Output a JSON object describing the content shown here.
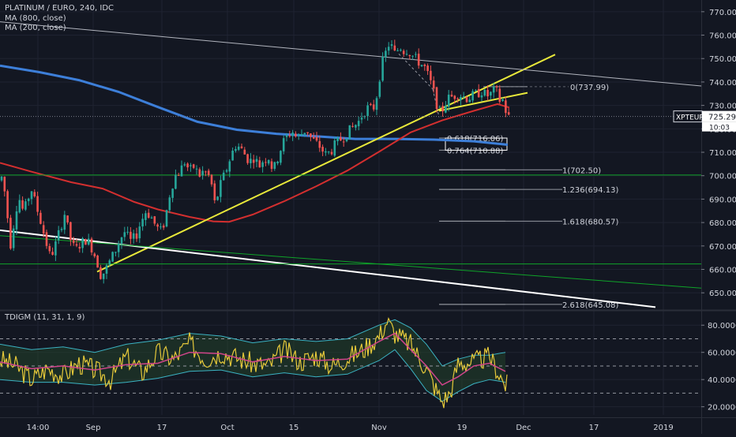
{
  "legend": {
    "symbol_line": "PLATINUM / EURO, 240, IDC",
    "ma_800": "MA (800, close)",
    "ma_200": "MA (200, close)",
    "oscillator": "TDIGM (11, 31, 1, 9)"
  },
  "colors": {
    "background": "#131722",
    "grid": "#1f2331",
    "up_candle": "#26a69a",
    "down_candle": "#ef5350",
    "ma_800": "#3d7fd9",
    "ma_200": "#d32f2f",
    "trendline": "#e8e83a",
    "support_line": "#ffffff",
    "green_level": "#0fa329",
    "fib": "#9598a1",
    "text": "#d1d4dc"
  },
  "chart_data": [
    {
      "type": "candlestick",
      "symbol": "XPTEUR",
      "title": "PLATINUM / EURO, 240, IDC",
      "current_price_label": "725.29",
      "countdown_label": "10:03",
      "ylim": [
        643,
        775
      ],
      "y_ticks": [
        "770.00",
        "760.00",
        "750.00",
        "740.00",
        "730.00",
        "720.00",
        "710.00",
        "700.00",
        "690.00",
        "680.00",
        "670.00",
        "660.00",
        "650.00"
      ],
      "x_ticks": [
        "14:00",
        "Sep",
        "17",
        "Oct",
        "15",
        "Nov",
        "19",
        "Dec",
        "17",
        "2019"
      ],
      "candle_path": [
        [
          0,
          698
        ],
        [
          3,
          700
        ],
        [
          8,
          688
        ],
        [
          13,
          670
        ],
        [
          16,
          676
        ],
        [
          20,
          686
        ],
        [
          25,
          690
        ],
        [
          30,
          684
        ],
        [
          35,
          690
        ],
        [
          40,
          694
        ],
        [
          45,
          688
        ],
        [
          52,
          680
        ],
        [
          58,
          672
        ],
        [
          63,
          666
        ],
        [
          68,
          668
        ],
        [
          75,
          676
        ],
        [
          82,
          684
        ],
        [
          88,
          674
        ],
        [
          95,
          668
        ],
        [
          102,
          671
        ],
        [
          110,
          673
        ],
        [
          118,
          668
        ],
        [
          124,
          662
        ],
        [
          128,
          657
        ],
        [
          134,
          660
        ],
        [
          140,
          664
        ],
        [
          146,
          668
        ],
        [
          152,
          673
        ],
        [
          158,
          676
        ],
        [
          165,
          672
        ],
        [
          172,
          674
        ],
        [
          178,
          680
        ],
        [
          185,
          685
        ],
        [
          192,
          682
        ],
        [
          198,
          678
        ],
        [
          205,
          676
        ],
        [
          211,
          685
        ],
        [
          216,
          694
        ],
        [
          222,
          700
        ],
        [
          228,
          702
        ],
        [
          234,
          706
        ],
        [
          240,
          702
        ],
        [
          246,
          704
        ],
        [
          252,
          700
        ],
        [
          258,
          702
        ],
        [
          264,
          700
        ],
        [
          268,
          696
        ],
        [
          272,
          688
        ],
        [
          276,
          692
        ],
        [
          280,
          697
        ],
        [
          286,
          702
        ],
        [
          292,
          708
        ],
        [
          298,
          713
        ],
        [
          304,
          712
        ],
        [
          310,
          709
        ],
        [
          316,
          706
        ],
        [
          322,
          708
        ],
        [
          328,
          704
        ],
        [
          334,
          707
        ],
        [
          340,
          708
        ],
        [
          346,
          702
        ],
        [
          352,
          708
        ],
        [
          358,
          714
        ],
        [
          364,
          717
        ],
        [
          370,
          719
        ],
        [
          376,
          716
        ],
        [
          382,
          718
        ],
        [
          388,
          720
        ],
        [
          394,
          716
        ],
        [
          400,
          714
        ],
        [
          406,
          712
        ],
        [
          412,
          709
        ],
        [
          418,
          710
        ],
        [
          424,
          713
        ],
        [
          430,
          715
        ],
        [
          436,
          717
        ],
        [
          442,
          719
        ],
        [
          448,
          721
        ],
        [
          454,
          723
        ],
        [
          460,
          727
        ],
        [
          466,
          729
        ],
        [
          472,
          728
        ],
        [
          476,
          732
        ],
        [
          480,
          741
        ],
        [
          484,
          748
        ],
        [
          488,
          752
        ],
        [
          492,
          756
        ],
        [
          496,
          755
        ],
        [
          500,
          752
        ],
        [
          504,
          754
        ],
        [
          508,
          755
        ],
        [
          512,
          753
        ],
        [
          516,
          754
        ],
        [
          520,
          752
        ],
        [
          526,
          750
        ],
        [
          532,
          748
        ],
        [
          538,
          746
        ],
        [
          544,
          741
        ],
        [
          548,
          737
        ],
        [
          552,
          732
        ],
        [
          556,
          727
        ],
        [
          560,
          728
        ],
        [
          564,
          731
        ],
        [
          568,
          733
        ],
        [
          574,
          734
        ],
        [
          580,
          735
        ],
        [
          586,
          734
        ],
        [
          592,
          733
        ],
        [
          598,
          734
        ],
        [
          604,
          735
        ],
        [
          610,
          736
        ],
        [
          616,
          734
        ],
        [
          622,
          735
        ],
        [
          628,
          737
        ],
        [
          632,
          732
        ],
        [
          636,
          733
        ],
        [
          640,
          728
        ],
        [
          644,
          725
        ]
      ],
      "series": [
        {
          "name": "MA (800, close)",
          "x": [
            0,
            50,
            100,
            150,
            200,
            250,
            300,
            350,
            400,
            450,
            500,
            550,
            600,
            643
          ],
          "y": [
            747,
            744.2,
            740.8,
            735.8,
            729.3,
            723,
            719.6,
            717.9,
            716.8,
            715.7,
            715.7,
            715.4,
            714.7,
            713.2
          ]
        },
        {
          "name": "MA (200, close)",
          "x": [
            0,
            40,
            90,
            130,
            170,
            200,
            240,
            270,
            290,
            320,
            360,
            400,
            440,
            480,
            520,
            560,
            600,
            630,
            645
          ],
          "y": [
            705.5,
            701.7,
            697.2,
            694.5,
            688.8,
            685.6,
            682.4,
            680.5,
            680.3,
            683.4,
            689.1,
            695.4,
            702.2,
            710.2,
            718.5,
            723.6,
            727.7,
            730.6,
            729.1
          ]
        }
      ],
      "trendlines": [
        {
          "name": "rising-yellow-main",
          "x": [
            123,
            703
          ],
          "y": [
            659,
            751.7
          ]
        },
        {
          "name": "rising-yellow-upper",
          "x": [
            556,
            668
          ],
          "y": [
            727.7,
            735.4
          ]
        },
        {
          "name": "descending-gray",
          "x": [
            0,
            888
          ],
          "y": [
            765.7,
            738.3
          ]
        },
        {
          "name": "descending-white",
          "x": [
            0,
            830
          ],
          "y": [
            676.7,
            643.9
          ]
        },
        {
          "name": "descending-green",
          "x": [
            0,
            888
          ],
          "y": [
            674.4,
            652
          ]
        },
        {
          "name": "horizontal-green-700",
          "x": [
            0,
            888
          ],
          "y": [
            700.3,
            700.3
          ]
        },
        {
          "name": "horizontal-green-662",
          "x": [
            0,
            888
          ],
          "y": [
            662.3,
            662.3
          ]
        }
      ],
      "fibonacci": [
        {
          "label": "0(737.99)",
          "value": 737.99
        },
        {
          "label": "0.618(716.06)",
          "value": 716.06
        },
        {
          "label": "0.764(710.88)",
          "value": 710.88
        },
        {
          "label": "1(702.50)",
          "value": 702.5
        },
        {
          "label": "1.236(694.13)",
          "value": 694.13
        },
        {
          "label": "1.618(680.57)",
          "value": 680.57
        },
        {
          "label": "2.618(645.08)",
          "value": 645.08
        }
      ],
      "highlight_box": {
        "y_range": [
          710.88,
          716.06
        ]
      }
    },
    {
      "type": "line",
      "title": "TDIGM (11, 31, 1, 9)",
      "ylim": [
        14,
        90
      ],
      "y_ticks": [
        "80.0000",
        "60.0000",
        "40.0000",
        "20.0000"
      ],
      "levels": [
        70,
        50,
        30
      ],
      "series": [
        {
          "name": "price-line",
          "x": [
            0,
            20,
            40,
            60,
            80,
            100,
            120,
            140,
            160,
            180,
            200,
            220,
            240,
            260,
            280,
            300,
            320,
            340,
            360,
            380,
            400,
            420,
            440,
            460,
            480,
            490,
            500,
            520,
            540,
            550,
            560,
            570,
            580,
            600,
            620,
            640
          ],
          "y": [
            55,
            50,
            40,
            48,
            43,
            52,
            47,
            40,
            57,
            45,
            60,
            55,
            67,
            55,
            60,
            56,
            52,
            50,
            62,
            53,
            58,
            50,
            56,
            62,
            72,
            83,
            74,
            66,
            48,
            35,
            24,
            30,
            52,
            53,
            57,
            36
          ]
        },
        {
          "name": "signal-line",
          "x": [
            0,
            40,
            80,
            120,
            160,
            200,
            240,
            280,
            320,
            360,
            400,
            440,
            480,
            500,
            520,
            540,
            560,
            580,
            600,
            620,
            640
          ],
          "y": [
            53,
            48,
            50,
            47,
            51,
            52,
            60,
            59,
            53,
            57,
            54,
            55,
            68,
            74,
            62,
            50,
            36,
            42,
            50,
            52,
            46
          ]
        },
        {
          "name": "band-upper",
          "x": [
            0,
            40,
            80,
            120,
            160,
            200,
            240,
            280,
            320,
            360,
            400,
            440,
            480,
            500,
            520,
            540,
            560,
            580,
            600,
            620,
            640
          ],
          "y": [
            66,
            62,
            64,
            60,
            66,
            69,
            74,
            72,
            67,
            70,
            68,
            70,
            80,
            84,
            78,
            66,
            50,
            55,
            58,
            58,
            60
          ]
        },
        {
          "name": "band-lower",
          "x": [
            0,
            40,
            80,
            120,
            160,
            200,
            240,
            280,
            320,
            360,
            400,
            440,
            480,
            500,
            520,
            540,
            560,
            580,
            600,
            620,
            640
          ],
          "y": [
            40,
            38,
            38,
            36,
            38,
            41,
            46,
            47,
            42,
            45,
            42,
            44,
            54,
            62,
            48,
            32,
            24,
            31,
            37,
            40,
            38
          ]
        }
      ]
    }
  ]
}
